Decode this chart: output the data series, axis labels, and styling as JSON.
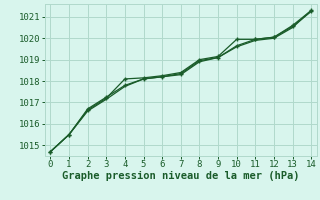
{
  "background_color": "#d8f5ed",
  "grid_color": "#b0d9cb",
  "line_color": "#1a5c2a",
  "marker_color": "#1a5c2a",
  "xlabel": "Graphe pression niveau de la mer (hPa)",
  "xlabel_color": "#1a5c2a",
  "xlim": [
    -0.3,
    14.3
  ],
  "ylim": [
    1014.5,
    1021.6
  ],
  "xticks": [
    0,
    1,
    2,
    3,
    4,
    5,
    6,
    7,
    8,
    9,
    10,
    11,
    12,
    13,
    14
  ],
  "yticks": [
    1015,
    1016,
    1017,
    1018,
    1019,
    1020,
    1021
  ],
  "series1_x": [
    0,
    1,
    2,
    3,
    4,
    5,
    6,
    7,
    8,
    9,
    10,
    11,
    12,
    13,
    14
  ],
  "series1_y": [
    1014.7,
    1015.5,
    1016.6,
    1017.15,
    1017.75,
    1018.1,
    1018.2,
    1018.3,
    1018.9,
    1019.1,
    1019.6,
    1019.9,
    1020.0,
    1020.5,
    1021.3
  ],
  "series2_x": [
    0,
    1,
    2,
    3,
    4,
    5,
    6,
    7,
    8,
    9,
    10,
    11,
    12,
    13,
    14
  ],
  "series2_y": [
    1014.7,
    1015.5,
    1016.65,
    1017.2,
    1018.1,
    1018.15,
    1018.25,
    1018.4,
    1019.0,
    1019.15,
    1019.95,
    1019.95,
    1020.05,
    1020.55,
    1021.25
  ],
  "series3_x": [
    0,
    1,
    2,
    3,
    4,
    5,
    6,
    7,
    8,
    9,
    10,
    11,
    12,
    13,
    14
  ],
  "series3_y": [
    1014.7,
    1015.5,
    1016.7,
    1017.25,
    1017.8,
    1018.1,
    1018.2,
    1018.35,
    1018.95,
    1019.1,
    1019.65,
    1019.95,
    1020.05,
    1020.6,
    1021.3
  ],
  "tick_label_fontsize": 6.5,
  "xlabel_fontsize": 7.5
}
